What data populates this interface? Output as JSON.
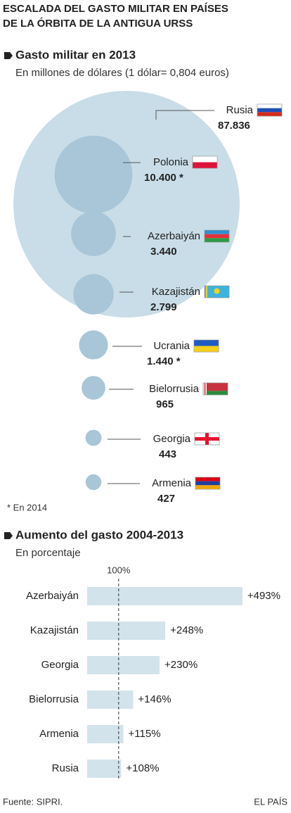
{
  "title_lines": [
    "ESCALADA DEL GASTO MILITAR EN PAÍSES",
    "DE LA ÓRBITA DE LA ANTIGUA URSS"
  ],
  "chart_data": [
    {
      "type": "bubble",
      "title": "Gasto militar en 2013",
      "subtitle": "En millones de dólares (1 dólar= 0,804 euros)",
      "categories": [
        "Rusia",
        "Polonia",
        "Azerbaiyán",
        "Kazajistán",
        "Ucrania",
        "Bielorrusia",
        "Georgia",
        "Armenia"
      ],
      "values": [
        87836,
        10400,
        3440,
        2799,
        1440,
        965,
        443,
        427
      ],
      "value_labels": [
        "87.836",
        "10.400 *",
        "3.440",
        "2.799",
        "1.440 *",
        "965",
        "443",
        "427"
      ],
      "color": "#c9dde8",
      "color_small": "#a9c6d8",
      "note": "* En 2014"
    },
    {
      "type": "bar",
      "title": "Aumento del gasto 2004-2013",
      "subtitle": "En porcentaje",
      "categories": [
        "Azerbaiyán",
        "Kazajistán",
        "Georgia",
        "Bielorrusia",
        "Armenia",
        "Rusia"
      ],
      "values": [
        493,
        248,
        230,
        146,
        115,
        108
      ],
      "value_labels": [
        "+493%",
        "+248%",
        "+230%",
        "+146%",
        "+115%",
        "+108%"
      ],
      "color": "#d3e3ec",
      "xlim": [
        0,
        500
      ],
      "reference": {
        "value": 100,
        "label": "100%"
      }
    }
  ],
  "source": "Fuente: SIPRI.",
  "credit": "EL PAÍS"
}
